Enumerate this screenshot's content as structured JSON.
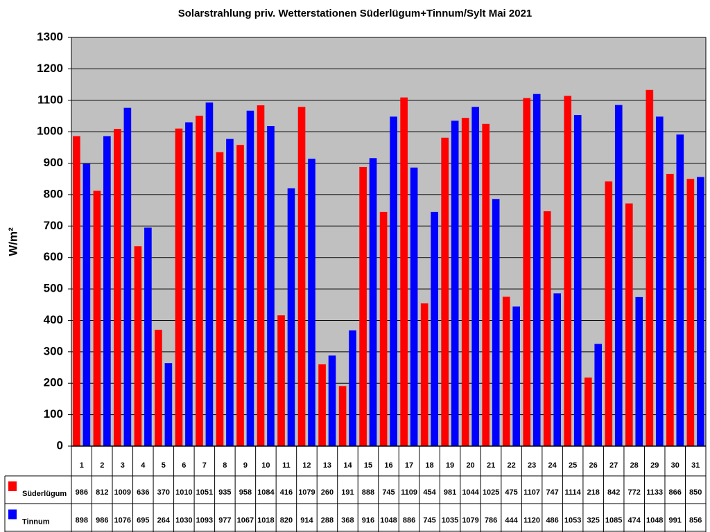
{
  "chart_data": {
    "type": "bar",
    "title": "Solarstrahlung priv. Wetterstationen Süderlügum+Tinnum/Sylt Mai 2021",
    "y_label": "W/m²",
    "categories": [
      "1",
      "2",
      "3",
      "4",
      "5",
      "6",
      "7",
      "8",
      "9",
      "10",
      "11",
      "12",
      "13",
      "14",
      "15",
      "16",
      "17",
      "18",
      "19",
      "20",
      "21",
      "22",
      "23",
      "24",
      "25",
      "26",
      "27",
      "28",
      "29",
      "30",
      "31"
    ],
    "series": [
      {
        "name": "Süderlügum",
        "color": "#ff0000",
        "values": [
          986,
          812,
          1009,
          636,
          370,
          1010,
          1051,
          935,
          958,
          1084,
          416,
          1079,
          260,
          191,
          888,
          745,
          1109,
          454,
          981,
          1044,
          1025,
          475,
          1107,
          747,
          1114,
          218,
          842,
          772,
          1133,
          866,
          850
        ]
      },
      {
        "name": "Tinnum",
        "color": "#0000ff",
        "values": [
          898,
          986,
          1076,
          695,
          264,
          1030,
          1093,
          977,
          1067,
          1018,
          820,
          914,
          288,
          368,
          916,
          1048,
          886,
          745,
          1035,
          1079,
          786,
          444,
          1120,
          486,
          1053,
          325,
          1085,
          474,
          1048,
          991,
          856
        ]
      }
    ],
    "ylim": [
      0,
      1300
    ],
    "yticks": [
      0,
      100,
      200,
      300,
      400,
      500,
      600,
      700,
      800,
      900,
      1000,
      1100,
      1200,
      1300
    ],
    "grid": true,
    "plot_background": "#c0c0c0"
  }
}
